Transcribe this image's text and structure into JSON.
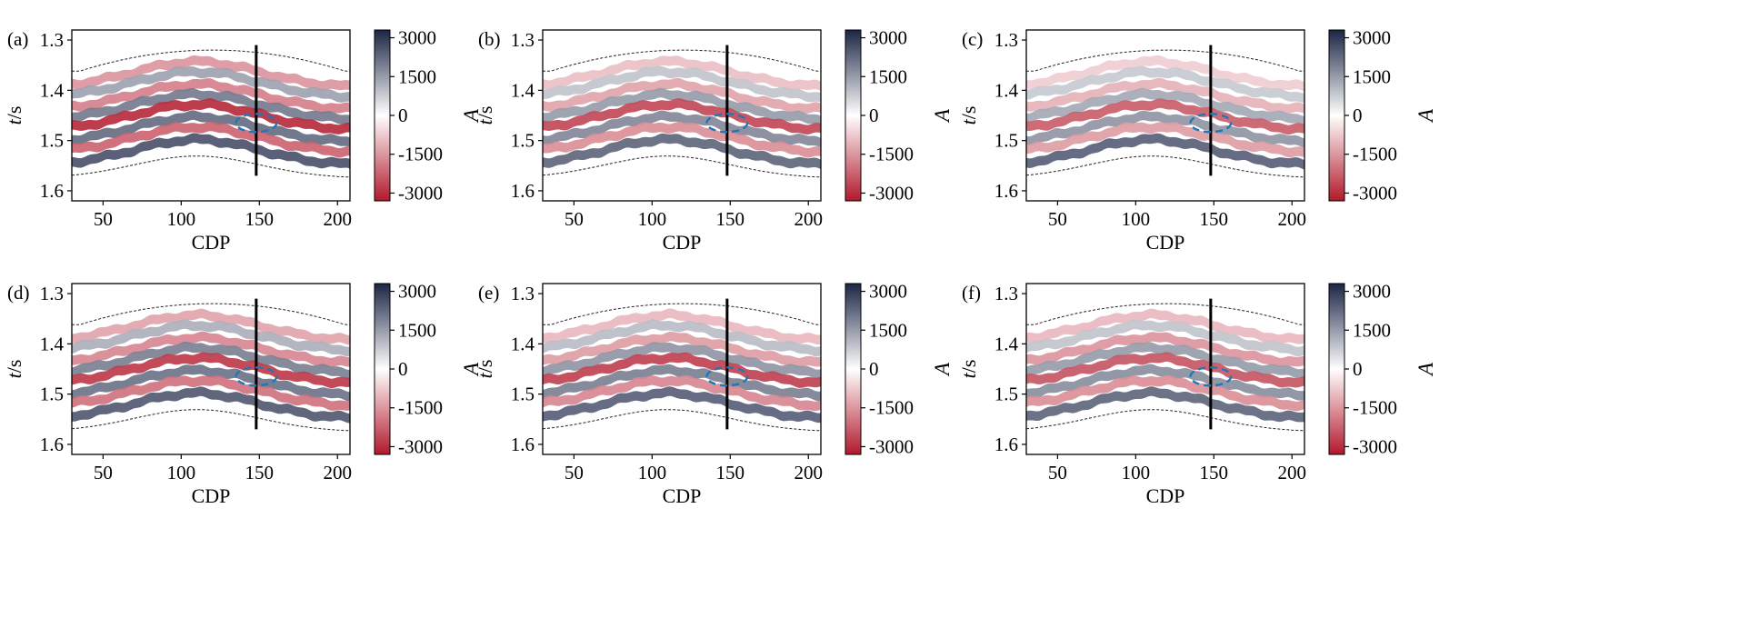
{
  "colors": {
    "neg": "#b2182b",
    "mid": "#ffffff",
    "pos": "#1b2545",
    "ellipse": "#1f77b4",
    "marker_line": "#000000"
  },
  "chart_data": [
    {
      "panel": "(a)",
      "type": "heatmap",
      "xlabel": "CDP",
      "ylabel": "t/s",
      "xticks": [
        50,
        100,
        150,
        200
      ],
      "yticks": [
        1.3,
        1.4,
        1.5,
        1.6
      ],
      "xlim": [
        30,
        208
      ],
      "ylim": [
        1.62,
        1.28
      ],
      "colorbar": {
        "label": "A",
        "ticks": [
          3000,
          1500,
          0,
          -1500,
          -3000
        ],
        "range": [
          -3300,
          3300
        ]
      },
      "marker_line": {
        "cdp": 148,
        "t_range": [
          1.31,
          1.57
        ]
      },
      "ellipse": {
        "cdp": 148,
        "t": 1.465,
        "rx_cdp": 13,
        "ry_t": 0.018
      },
      "horizons": [
        {
          "t": 1.395,
          "amp": -1500
        },
        {
          "t": 1.415,
          "amp": 1400
        },
        {
          "t": 1.44,
          "amp": -1800
        },
        {
          "t": 1.46,
          "amp": 2000
        },
        {
          "t": 1.48,
          "amp": -3000
        },
        {
          "t": 1.505,
          "amp": 2200
        },
        {
          "t": 1.525,
          "amp": -2200
        },
        {
          "t": 1.55,
          "amp": 2600
        }
      ]
    },
    {
      "panel": "(b)",
      "type": "heatmap",
      "xlabel": "CDP",
      "ylabel": "t/s",
      "xticks": [
        50,
        100,
        150,
        200
      ],
      "yticks": [
        1.3,
        1.4,
        1.5,
        1.6
      ],
      "xlim": [
        30,
        208
      ],
      "ylim": [
        1.62,
        1.28
      ],
      "colorbar": {
        "label": "A",
        "ticks": [
          3000,
          1500,
          0,
          -1500,
          -3000
        ],
        "range": [
          -3300,
          3300
        ]
      },
      "marker_line": {
        "cdp": 148,
        "t_range": [
          1.31,
          1.57
        ]
      },
      "ellipse": {
        "cdp": 148,
        "t": 1.465,
        "rx_cdp": 13,
        "ry_t": 0.018
      },
      "horizons": [
        {
          "t": 1.395,
          "amp": -900
        },
        {
          "t": 1.415,
          "amp": 900
        },
        {
          "t": 1.44,
          "amp": -1300
        },
        {
          "t": 1.46,
          "amp": 1500
        },
        {
          "t": 1.48,
          "amp": -2600
        },
        {
          "t": 1.505,
          "amp": 1800
        },
        {
          "t": 1.525,
          "amp": -1600
        },
        {
          "t": 1.55,
          "amp": 2300
        }
      ]
    },
    {
      "panel": "(c)",
      "type": "heatmap",
      "xlabel": "CDP",
      "ylabel": "t/s",
      "xticks": [
        50,
        100,
        150,
        200
      ],
      "yticks": [
        1.3,
        1.4,
        1.5,
        1.6
      ],
      "xlim": [
        30,
        208
      ],
      "ylim": [
        1.62,
        1.28
      ],
      "colorbar": {
        "label": "A",
        "ticks": [
          3000,
          1500,
          0,
          -1500,
          -3000
        ],
        "range": [
          -3300,
          3300
        ]
      },
      "marker_line": {
        "cdp": 148,
        "t_range": [
          1.31,
          1.57
        ]
      },
      "ellipse": {
        "cdp": 148,
        "t": 1.465,
        "rx_cdp": 13,
        "ry_t": 0.018
      },
      "horizons": [
        {
          "t": 1.395,
          "amp": -700
        },
        {
          "t": 1.415,
          "amp": 800
        },
        {
          "t": 1.44,
          "amp": -1100
        },
        {
          "t": 1.46,
          "amp": 1300
        },
        {
          "t": 1.48,
          "amp": -2300
        },
        {
          "t": 1.505,
          "amp": 1600
        },
        {
          "t": 1.525,
          "amp": -1400
        },
        {
          "t": 1.55,
          "amp": 2400
        }
      ]
    },
    {
      "panel": "(d)",
      "type": "heatmap",
      "xlabel": "CDP",
      "ylabel": "t/s",
      "xticks": [
        50,
        100,
        150,
        200
      ],
      "yticks": [
        1.3,
        1.4,
        1.5,
        1.6
      ],
      "xlim": [
        30,
        208
      ],
      "ylim": [
        1.62,
        1.28
      ],
      "colorbar": {
        "label": "A",
        "ticks": [
          3000,
          1500,
          0,
          -1500,
          -3000
        ],
        "range": [
          -3300,
          3300
        ]
      },
      "marker_line": {
        "cdp": 148,
        "t_range": [
          1.31,
          1.57
        ]
      },
      "ellipse": {
        "cdp": 148,
        "t": 1.465,
        "rx_cdp": 13,
        "ry_t": 0.018
      },
      "horizons": [
        {
          "t": 1.395,
          "amp": -1300
        },
        {
          "t": 1.415,
          "amp": 1200
        },
        {
          "t": 1.44,
          "amp": -1700
        },
        {
          "t": 1.46,
          "amp": 1900
        },
        {
          "t": 1.48,
          "amp": -2800
        },
        {
          "t": 1.505,
          "amp": 2100
        },
        {
          "t": 1.525,
          "amp": -2000
        },
        {
          "t": 1.55,
          "amp": 2500
        }
      ]
    },
    {
      "panel": "(e)",
      "type": "heatmap",
      "xlabel": "CDP",
      "ylabel": "t/s",
      "xticks": [
        50,
        100,
        150,
        200
      ],
      "yticks": [
        1.3,
        1.4,
        1.5,
        1.6
      ],
      "xlim": [
        30,
        208
      ],
      "ylim": [
        1.62,
        1.28
      ],
      "colorbar": {
        "label": "A",
        "ticks": [
          3000,
          1500,
          0,
          -1500,
          -3000
        ],
        "range": [
          -3300,
          3300
        ]
      },
      "marker_line": {
        "cdp": 148,
        "t_range": [
          1.31,
          1.57
        ]
      },
      "ellipse": {
        "cdp": 148,
        "t": 1.465,
        "rx_cdp": 13,
        "ry_t": 0.018
      },
      "horizons": [
        {
          "t": 1.395,
          "amp": -1000
        },
        {
          "t": 1.415,
          "amp": 1000
        },
        {
          "t": 1.44,
          "amp": -1400
        },
        {
          "t": 1.46,
          "amp": 1600
        },
        {
          "t": 1.48,
          "amp": -2700
        },
        {
          "t": 1.505,
          "amp": 1900
        },
        {
          "t": 1.525,
          "amp": -1700
        },
        {
          "t": 1.55,
          "amp": 2400
        }
      ]
    },
    {
      "panel": "(f)",
      "type": "heatmap",
      "xlabel": "CDP",
      "ylabel": "t/s",
      "xticks": [
        50,
        100,
        150,
        200
      ],
      "yticks": [
        1.3,
        1.4,
        1.5,
        1.6
      ],
      "xlim": [
        30,
        208
      ],
      "ylim": [
        1.62,
        1.28
      ],
      "colorbar": {
        "label": "A",
        "ticks": [
          3000,
          1500,
          0,
          -1500,
          -3000
        ],
        "range": [
          -3300,
          3300
        ]
      },
      "marker_line": {
        "cdp": 148,
        "t_range": [
          1.31,
          1.57
        ]
      },
      "ellipse": {
        "cdp": 148,
        "t": 1.465,
        "rx_cdp": 13,
        "ry_t": 0.018
      },
      "horizons": [
        {
          "t": 1.395,
          "amp": -1000
        },
        {
          "t": 1.415,
          "amp": 900
        },
        {
          "t": 1.44,
          "amp": -1500
        },
        {
          "t": 1.46,
          "amp": 1500
        },
        {
          "t": 1.48,
          "amp": -2400
        },
        {
          "t": 1.505,
          "amp": 1700
        },
        {
          "t": 1.525,
          "amp": -1600
        },
        {
          "t": 1.55,
          "amp": 2300
        }
      ]
    }
  ]
}
